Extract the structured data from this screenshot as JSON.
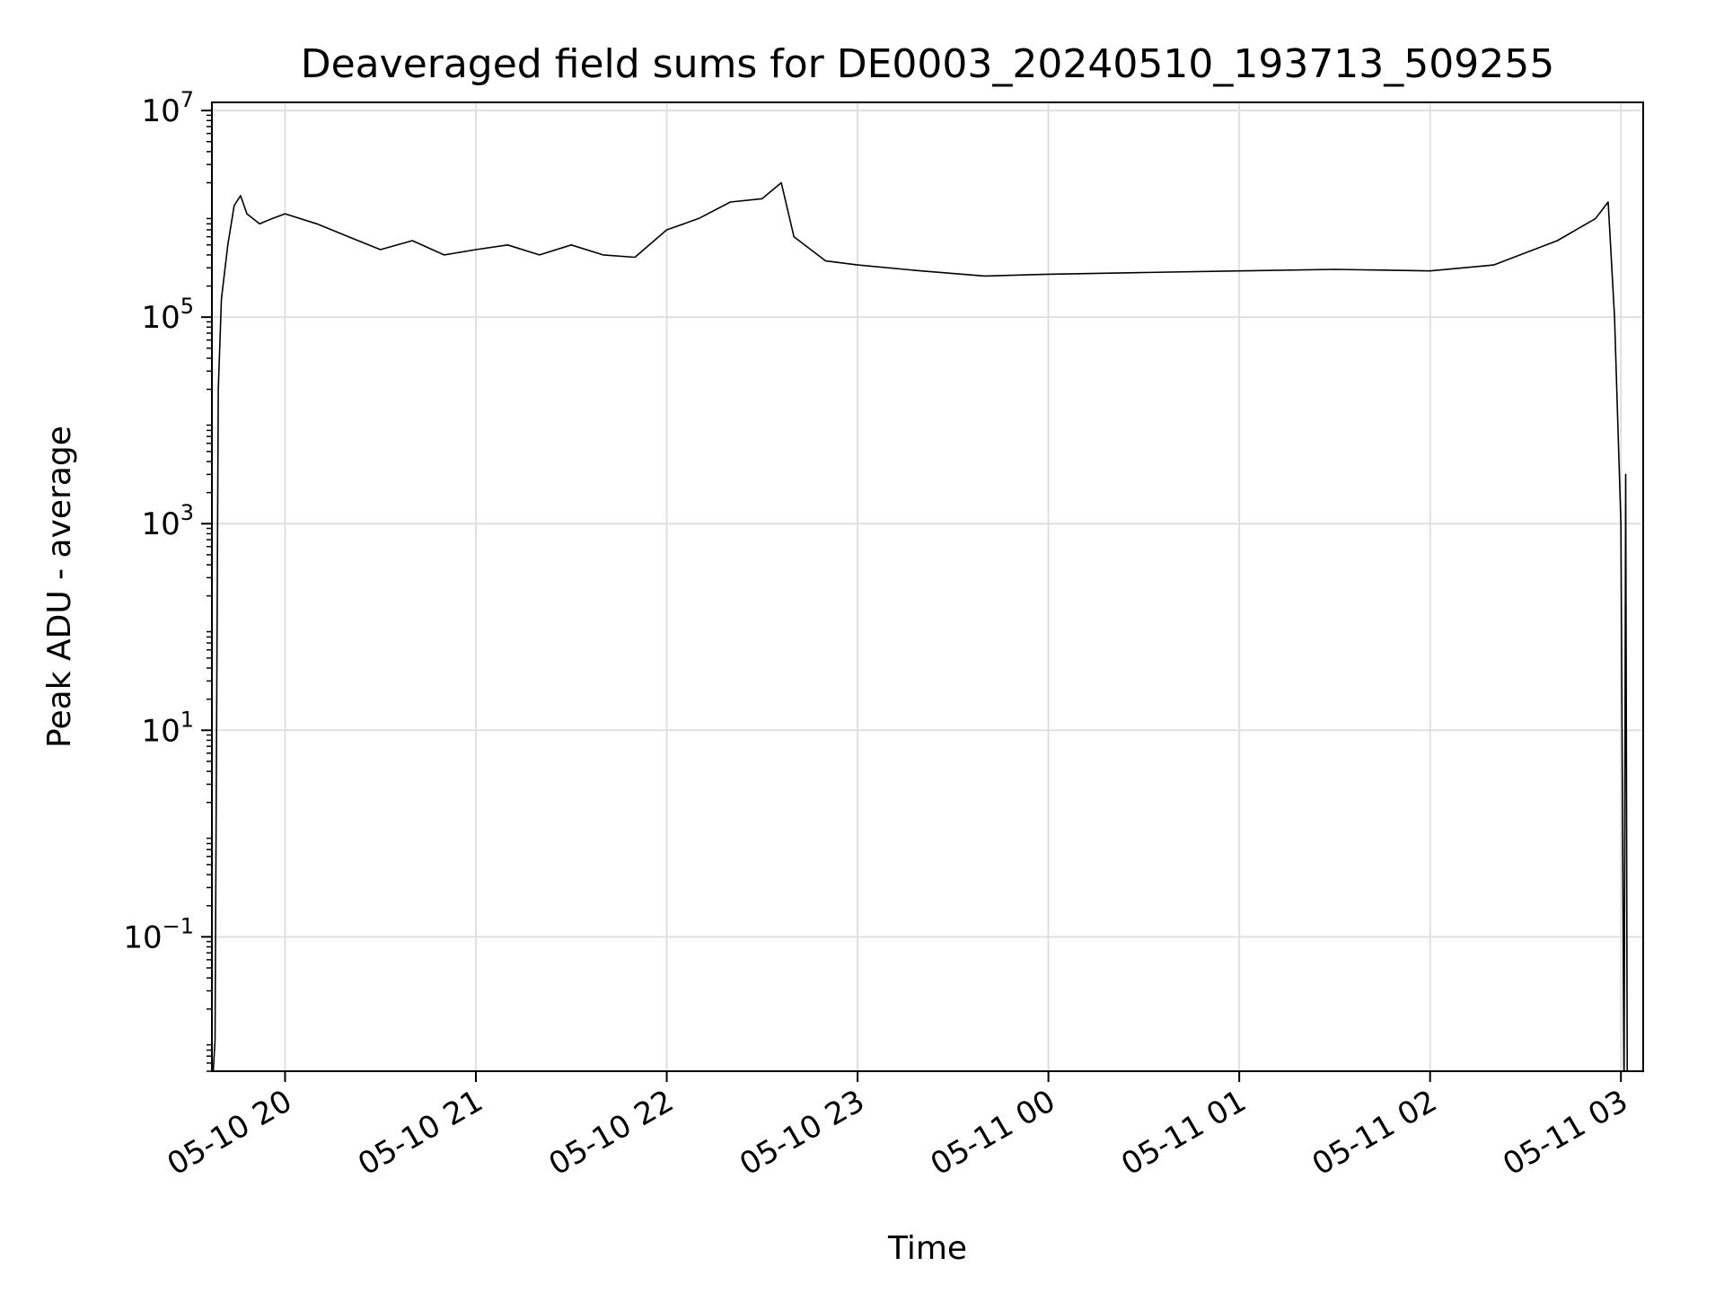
{
  "chart_data": {
    "type": "line",
    "title": "Deaveraged field sums for DE0003_20240510_193713_509255",
    "xlabel": "Time",
    "ylabel": "Peak ADU - average",
    "y_scale": "log",
    "ylim": [
      0.005,
      12000000.0
    ],
    "xlim": [
      "2024-05-10 19:37",
      "2024-05-11 03:07"
    ],
    "grid": true,
    "line_color": "#000000",
    "x_ticks": [
      {
        "t": "2024-05-10 20:00",
        "label": "05-10 20"
      },
      {
        "t": "2024-05-10 21:00",
        "label": "05-10 21"
      },
      {
        "t": "2024-05-10 22:00",
        "label": "05-10 22"
      },
      {
        "t": "2024-05-10 23:00",
        "label": "05-10 23"
      },
      {
        "t": "2024-05-11 00:00",
        "label": "05-11 00"
      },
      {
        "t": "2024-05-11 01:00",
        "label": "05-11 01"
      },
      {
        "t": "2024-05-11 02:00",
        "label": "05-11 02"
      },
      {
        "t": "2024-05-11 03:00",
        "label": "05-11 03"
      }
    ],
    "y_ticks": [
      {
        "value": 0.1,
        "base": "10",
        "exp": "−1"
      },
      {
        "value": 10,
        "base": "10",
        "exp": "1"
      },
      {
        "value": 1000,
        "base": "10",
        "exp": "3"
      },
      {
        "value": 100000,
        "base": "10",
        "exp": "5"
      },
      {
        "value": 10000000,
        "base": "10",
        "exp": "7"
      }
    ],
    "series": [
      {
        "x": [
          "2024-05-10 19:37",
          "2024-05-10 19:38",
          "2024-05-10 19:39",
          "2024-05-10 19:40",
          "2024-05-10 19:42",
          "2024-05-10 19:44",
          "2024-05-10 19:46",
          "2024-05-10 19:48",
          "2024-05-10 19:52",
          "2024-05-10 19:56",
          "2024-05-10 20:00",
          "2024-05-10 20:10",
          "2024-05-10 20:20",
          "2024-05-10 20:30",
          "2024-05-10 20:40",
          "2024-05-10 20:50",
          "2024-05-10 21:00",
          "2024-05-10 21:10",
          "2024-05-10 21:20",
          "2024-05-10 21:30",
          "2024-05-10 21:40",
          "2024-05-10 21:50",
          "2024-05-10 22:00",
          "2024-05-10 22:10",
          "2024-05-10 22:20",
          "2024-05-10 22:30",
          "2024-05-10 22:36",
          "2024-05-10 22:40",
          "2024-05-10 22:50",
          "2024-05-10 23:00",
          "2024-05-10 23:20",
          "2024-05-10 23:40",
          "2024-05-11 00:00",
          "2024-05-11 00:30",
          "2024-05-11 01:00",
          "2024-05-11 01:30",
          "2024-05-11 02:00",
          "2024-05-11 02:20",
          "2024-05-11 02:40",
          "2024-05-11 02:52",
          "2024-05-11 02:56",
          "2024-05-11 02:58",
          "2024-05-11 03:00",
          "2024-05-11 03:01",
          "2024-05-11 03:01:30",
          "2024-05-11 03:02",
          "2024-05-11 03:03",
          "2024-05-11 03:04"
        ],
        "y": [
          0.003,
          0.01,
          20000,
          150000,
          500000,
          1200000,
          1500000,
          1000000,
          800000,
          900000,
          1000000,
          800000,
          600000,
          450000,
          550000,
          400000,
          450000,
          500000,
          400000,
          500000,
          400000,
          380000,
          700000,
          900000,
          1300000,
          1400000,
          2000000,
          600000,
          350000,
          320000,
          280000,
          250000,
          260000,
          270000,
          280000,
          290000,
          280000,
          320000,
          550000,
          900000,
          1300000,
          100000,
          1000,
          0.003,
          3000,
          0.003,
          0.003,
          0.003
        ]
      }
    ]
  }
}
